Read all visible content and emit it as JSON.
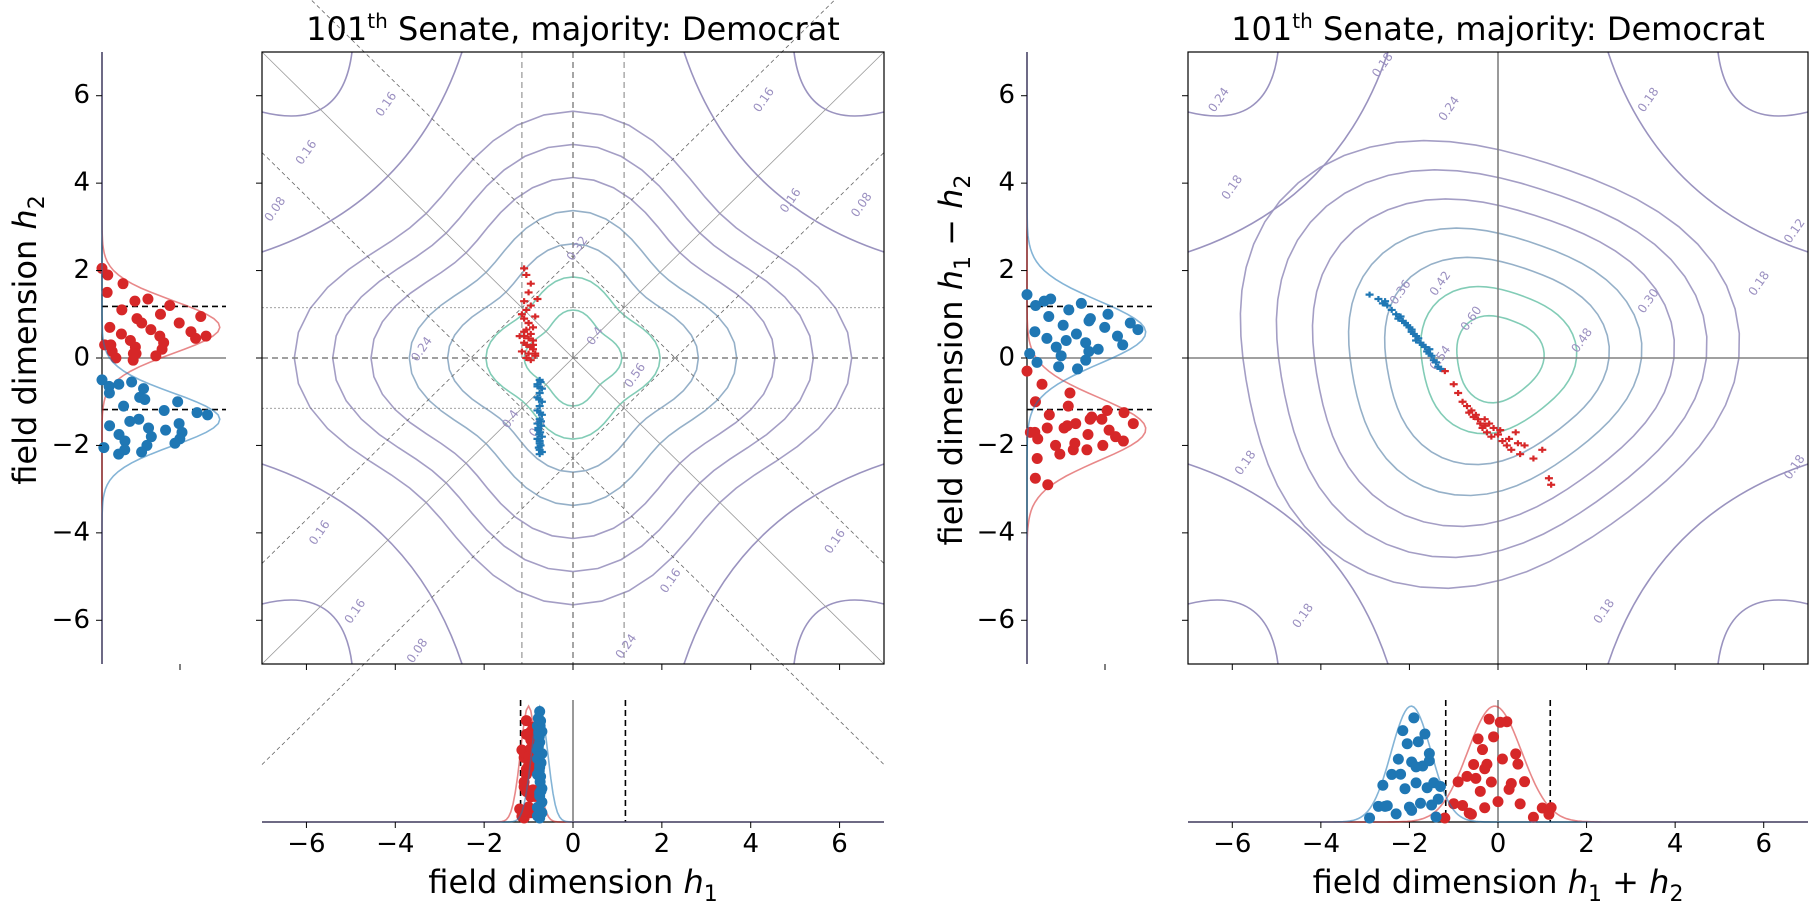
{
  "colors": {
    "republican": "#d62728",
    "democrat": "#1f77b4",
    "contour_low": "#9a93bf",
    "contour_mid": "#8aa7c2",
    "contour_high": "#74c7ae",
    "axis_line": "#808080",
    "kde_gray": "#b0b0b0"
  },
  "chart_data": [
    {
      "id": "left",
      "type": "scatter",
      "title_prefix": "101",
      "title_sup": "th",
      "title_suffix": " Senate, majority: Democrat",
      "xlabel": "field dimension h₁",
      "xlabel_main": "field dimension ",
      "xlabel_math": "h",
      "xlabel_sub": "1",
      "ylabel_main": "field dimension ",
      "ylabel_math": "h",
      "ylabel_sub": "2",
      "xlim": [
        -7,
        7
      ],
      "ylim": [
        -7,
        7
      ],
      "xticks": [
        -6,
        -4,
        -2,
        0,
        2,
        4,
        6
      ],
      "xtick_labels": [
        "−6",
        "−4",
        "−2",
        "0",
        "2",
        "4",
        "6"
      ],
      "yticks": [
        6,
        4,
        2,
        0,
        -2,
        -4,
        -6
      ],
      "ytick_labels": [
        "6",
        "4",
        "2",
        "0",
        "−2",
        "−4",
        "−6"
      ],
      "reference_lines": {
        "vertical": [
          -1.15,
          0,
          1.15
        ],
        "horizontal": [
          -1.15,
          0,
          1.15
        ],
        "threshold": 1.18
      },
      "contour_labels": [
        {
          "text": "0.16",
          "x": -4.2,
          "y": 5.8
        },
        {
          "text": "0.16",
          "x": -6.0,
          "y": 4.7
        },
        {
          "text": "0.16",
          "x": 4.3,
          "y": 5.9
        },
        {
          "text": "0.16",
          "x": 4.9,
          "y": 3.6
        },
        {
          "text": "0.08",
          "x": -6.7,
          "y": 3.4
        },
        {
          "text": "0.08",
          "x": 6.5,
          "y": 3.5
        },
        {
          "text": "0.32",
          "x": 0.1,
          "y": 2.5
        },
        {
          "text": "0.24",
          "x": -3.4,
          "y": 0.2
        },
        {
          "text": "0.16",
          "x": -5.7,
          "y": -4.0
        },
        {
          "text": "0.16",
          "x": -4.9,
          "y": -5.8
        },
        {
          "text": "0.08",
          "x": -3.5,
          "y": -6.7
        },
        {
          "text": "0.16",
          "x": 5.9,
          "y": -4.2
        },
        {
          "text": "0.16",
          "x": 2.2,
          "y": -5.1
        },
        {
          "text": "0.24",
          "x": 1.2,
          "y": -6.6
        },
        {
          "text": "0.4",
          "x": 0.5,
          "y": 0.5
        },
        {
          "text": "0.56",
          "x": 1.4,
          "y": -0.4
        },
        {
          "text": "0.4",
          "x": -1.4,
          "y": -1.4
        },
        {
          "text": "0.3",
          "x": -0.8,
          "y": -1.6
        }
      ],
      "series": [
        {
          "name": "Republican",
          "party": "R",
          "x": [
            -1.1,
            -1.05,
            -0.95,
            -1.0,
            -1.1,
            -0.95,
            -1.05,
            -1.15,
            -0.85,
            -1.1,
            -1.0,
            -0.9,
            -1.05,
            -1.1,
            -0.95,
            -1.2,
            -1.0,
            -0.9,
            -1.1,
            -1.05,
            -0.95,
            -0.9,
            -1.15,
            -1.0,
            -0.85,
            -1.05,
            -0.95,
            -1.1,
            -1.0,
            -0.8,
            -0.9,
            -0.85
          ],
          "y": [
            2.05,
            1.9,
            1.7,
            1.5,
            1.3,
            1.2,
            1.1,
            1.0,
            0.95,
            0.9,
            0.8,
            0.7,
            0.65,
            0.6,
            0.55,
            0.5,
            0.45,
            0.4,
            0.35,
            0.3,
            0.25,
            0.2,
            0.15,
            0.1,
            0.05,
            0.0,
            -0.05,
            0.5,
            0.8,
            1.35,
            0.3,
            0.1
          ]
        },
        {
          "name": "Democrat",
          "party": "D",
          "x": [
            -0.75,
            -0.8,
            -0.7,
            -0.75,
            -0.8,
            -0.7,
            -0.75,
            -0.8,
            -0.7,
            -0.75,
            -0.8,
            -0.72,
            -0.78,
            -0.74,
            -0.76,
            -0.7,
            -0.8,
            -0.75,
            -0.73,
            -0.77,
            -0.75,
            -0.7,
            -0.8,
            -0.76,
            -0.74,
            -0.72,
            -0.78,
            -0.75,
            -0.75,
            -0.73
          ],
          "y": [
            -0.5,
            -0.6,
            -0.7,
            -0.8,
            -0.9,
            -1.0,
            -1.1,
            -1.2,
            -1.3,
            -1.4,
            -1.5,
            -1.55,
            -1.6,
            -1.7,
            -1.75,
            -1.8,
            -1.85,
            -1.9,
            -2.0,
            -2.05,
            -2.1,
            -2.15,
            -0.65,
            -0.95,
            -1.25,
            -1.45,
            -1.65,
            -1.95,
            -2.2,
            -0.55
          ]
        }
      ],
      "bottom_marginal": {
        "dashed_x": [
          -1.18,
          1.18
        ],
        "solid_x": 0
      },
      "side_marginal": {
        "dashed_y": [
          1.18,
          -1.18
        ],
        "solid_y": 0
      }
    },
    {
      "id": "right",
      "type": "scatter",
      "title_prefix": "101",
      "title_sup": "th",
      "title_suffix": " Senate, majority: Democrat",
      "xlabel": "field dimension h₁ + h₂",
      "xlabel_main": "field dimension ",
      "xlabel_math": "h",
      "xlabel_sub": "1",
      "xlabel_op": " + ",
      "xlabel_math2": "h",
      "xlabel_sub2": "2",
      "ylabel_main": "field dimension ",
      "ylabel_math": "h",
      "ylabel_sub": "1",
      "ylabel_op": " − ",
      "ylabel_math2": "h",
      "ylabel_sub2": "2",
      "xlim": [
        -7,
        7
      ],
      "ylim": [
        -7,
        7
      ],
      "xticks": [
        -6,
        -4,
        -2,
        0,
        2,
        4,
        6
      ],
      "xtick_labels": [
        "−6",
        "−4",
        "−2",
        "0",
        "2",
        "4",
        "6"
      ],
      "yticks": [
        6,
        4,
        2,
        0,
        -2,
        -4,
        -6
      ],
      "ytick_labels": [
        "6",
        "4",
        "2",
        "0",
        "−2",
        "−4",
        "−6"
      ],
      "contour_labels": [
        {
          "text": "0.18",
          "x": -2.6,
          "y": 6.7
        },
        {
          "text": "0.18",
          "x": 3.4,
          "y": 5.9
        },
        {
          "text": "0.24",
          "x": -1.1,
          "y": 5.7
        },
        {
          "text": "0.24",
          "x": -6.3,
          "y": 5.9
        },
        {
          "text": "0.18",
          "x": -6.0,
          "y": 3.9
        },
        {
          "text": "0.12",
          "x": 6.7,
          "y": 2.9
        },
        {
          "text": "0.18",
          "x": 5.9,
          "y": 1.7
        },
        {
          "text": "0.36",
          "x": -2.2,
          "y": 1.5
        },
        {
          "text": "0.42",
          "x": -1.3,
          "y": 1.7
        },
        {
          "text": "0.60",
          "x": -0.6,
          "y": 0.9
        },
        {
          "text": "0.54",
          "x": -1.3,
          "y": 0.0
        },
        {
          "text": "0.48",
          "x": 1.9,
          "y": 0.4
        },
        {
          "text": "0.30",
          "x": 3.4,
          "y": 1.3
        },
        {
          "text": "0.18",
          "x": -5.7,
          "y": -2.4
        },
        {
          "text": "0.18",
          "x": 6.7,
          "y": -2.5
        },
        {
          "text": "0.18",
          "x": -4.4,
          "y": -5.9
        },
        {
          "text": "0.18",
          "x": 2.4,
          "y": -5.8
        }
      ],
      "series": [
        {
          "name": "Republican",
          "party": "R",
          "x": [
            -1.2,
            -1.0,
            -0.9,
            -0.8,
            -0.7,
            -0.6,
            -0.5,
            -0.45,
            -0.4,
            -0.35,
            -0.3,
            -0.25,
            -0.2,
            -0.15,
            -0.1,
            0.0,
            0.1,
            0.2,
            0.3,
            0.4,
            0.5,
            0.6,
            0.8,
            1.0,
            1.2,
            1.15,
            -0.55,
            -0.65,
            -0.3,
            0.05,
            0.25,
            0.45
          ],
          "y": [
            -0.3,
            -0.6,
            -0.8,
            -1.0,
            -1.1,
            -1.2,
            -1.3,
            -1.4,
            -1.5,
            -1.6,
            -1.4,
            -1.7,
            -1.5,
            -1.8,
            -1.6,
            -1.75,
            -1.9,
            -2.0,
            -2.1,
            -1.7,
            -2.2,
            -2.0,
            -2.3,
            -2.1,
            -2.9,
            -2.75,
            -1.35,
            -1.25,
            -1.55,
            -1.65,
            -1.85,
            -1.95
          ]
        },
        {
          "name": "Democrat",
          "party": "D",
          "x": [
            -2.9,
            -2.7,
            -2.6,
            -2.5,
            -2.4,
            -2.3,
            -2.2,
            -2.15,
            -2.1,
            -2.05,
            -2.0,
            -1.95,
            -1.9,
            -1.85,
            -1.8,
            -1.75,
            -1.7,
            -1.65,
            -1.6,
            -1.55,
            -1.5,
            -1.45,
            -1.4,
            -1.35,
            -1.3,
            -2.55,
            -2.25,
            -1.95,
            -1.85,
            -1.55
          ],
          "y": [
            1.45,
            1.35,
            1.25,
            1.2,
            1.1,
            1.0,
            0.95,
            0.85,
            0.8,
            0.75,
            0.7,
            0.6,
            0.55,
            0.5,
            0.45,
            0.35,
            0.3,
            0.25,
            0.15,
            0.1,
            0.05,
            -0.05,
            -0.1,
            -0.2,
            -0.25,
            1.3,
            0.9,
            0.65,
            0.4,
            0.2
          ]
        }
      ],
      "bottom_marginal": {
        "dashed_x": [
          -1.18,
          1.18
        ],
        "solid_x": 0
      },
      "side_marginal": {
        "dashed_y": [
          1.18,
          -1.18
        ],
        "solid_y": 0
      }
    }
  ]
}
